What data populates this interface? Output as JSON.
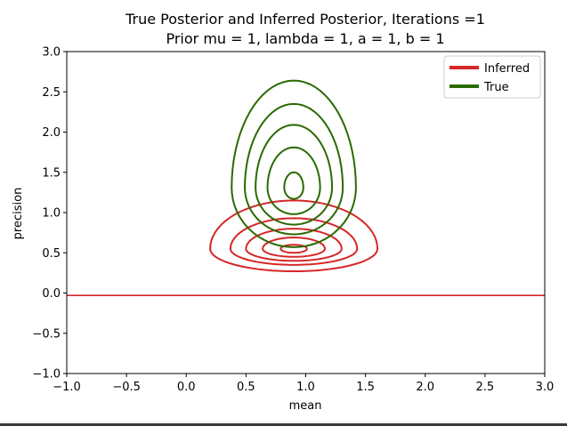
{
  "chart_data": {
    "type": "contour",
    "title": "True Posterior and Inferred Posterior, Iterations =1",
    "subtitle": "Prior mu = 1, lambda = 1, a = 1, b = 1",
    "xlabel": "mean",
    "ylabel": "precision",
    "xlim": [
      -1.0,
      3.0
    ],
    "ylim": [
      -1.0,
      3.0
    ],
    "xticks": [
      "−1.0",
      "−0.5",
      "0.0",
      "0.5",
      "1.0",
      "1.5",
      "2.0",
      "2.5",
      "3.0"
    ],
    "yticks": [
      "−1.0",
      "−0.5",
      "0.0",
      "0.5",
      "1.0",
      "1.5",
      "2.0",
      "2.5",
      "3.0"
    ],
    "grid": false,
    "legend_position": "top-right",
    "series": [
      {
        "name": "Inferred",
        "color": "#d62728",
        "center": [
          0.9,
          0.55
        ],
        "contours": [
          {
            "x_half_width": 0.7,
            "y_down": 0.28,
            "y_up": 0.6
          },
          {
            "x_half_width": 0.53,
            "y_down": 0.2,
            "y_up": 0.38
          },
          {
            "x_half_width": 0.4,
            "y_down": 0.15,
            "y_up": 0.25
          },
          {
            "x_half_width": 0.26,
            "y_down": 0.1,
            "y_up": 0.14
          },
          {
            "x_half_width": 0.11,
            "y_down": 0.05,
            "y_up": 0.05
          }
        ],
        "baseline_y": -0.03
      },
      {
        "name": "True",
        "color": "#2a6a00",
        "center": [
          0.9,
          1.31
        ],
        "contours": [
          {
            "x_half_width": 0.52,
            "y_down": 0.74,
            "y_up": 1.33
          },
          {
            "x_half_width": 0.41,
            "y_down": 0.58,
            "y_up": 1.04
          },
          {
            "x_half_width": 0.32,
            "y_down": 0.46,
            "y_up": 0.78
          },
          {
            "x_half_width": 0.22,
            "y_down": 0.33,
            "y_up": 0.5
          },
          {
            "x_half_width": 0.08,
            "y_down": 0.14,
            "y_up": 0.19
          }
        ]
      }
    ]
  }
}
